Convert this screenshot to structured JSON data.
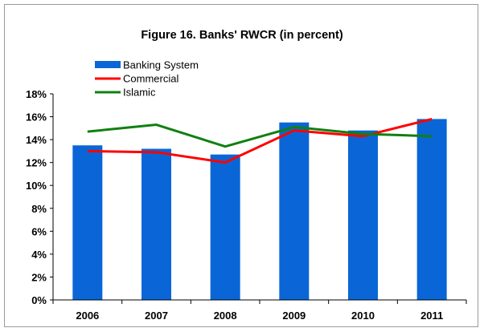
{
  "chart_data": {
    "type": "bar",
    "title": "Figure 16. Banks' RWCR (in percent)",
    "xlabel": "",
    "ylabel": "",
    "categories": [
      "2006",
      "2007",
      "2008",
      "2009",
      "2010",
      "2011"
    ],
    "ylim": [
      0,
      18
    ],
    "yticks": [
      0,
      2,
      4,
      6,
      8,
      10,
      12,
      14,
      16,
      18
    ],
    "ytick_labels": [
      "0%",
      "2%",
      "4%",
      "6%",
      "8%",
      "10%",
      "12%",
      "14%",
      "16%",
      "18%"
    ],
    "grid": false,
    "legend_position": "top-left",
    "series": [
      {
        "name": "Banking System",
        "type": "bar",
        "color": "#0a66d6",
        "values": [
          13.5,
          13.2,
          12.7,
          15.5,
          14.8,
          15.8
        ]
      },
      {
        "name": "Commercial",
        "type": "line",
        "color": "#ff0000",
        "values": [
          13.0,
          12.9,
          12.0,
          14.8,
          14.3,
          15.8
        ]
      },
      {
        "name": "Islamic",
        "type": "line",
        "color": "#108010",
        "values": [
          14.7,
          15.3,
          13.4,
          15.1,
          14.5,
          14.3
        ]
      }
    ]
  }
}
